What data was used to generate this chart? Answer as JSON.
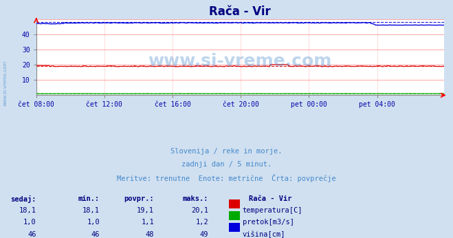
{
  "title": "Rača - Vir",
  "bg_color": "#d0e0f0",
  "plot_bg_color": "#ffffff",
  "grid_color_h": "#ff0000",
  "grid_color_v": "#ff9999",
  "xlabel_color": "#0000aa",
  "title_color": "#000080",
  "subtitle_lines": [
    "Slovenija / reke in morje.",
    "zadnji dan / 5 minut.",
    "Meritve: trenutne  Enote: metrične  Črta: povprečje"
  ],
  "subtitle_color": "#4488cc",
  "watermark": "www.si-vreme.com",
  "watermark_color": "#4488cc",
  "ylim": [
    0,
    50
  ],
  "yticks": [
    0,
    10,
    20,
    30,
    40,
    50
  ],
  "x_labels": [
    "čet 08:00",
    "čet 12:00",
    "čet 16:00",
    "čet 20:00",
    "pet 00:00",
    "pet 04:00"
  ],
  "n_points": 288,
  "temp_min": 18.1,
  "temp_max": 20.1,
  "temp_avg": 19.1,
  "temp_color": "#dd0000",
  "pretok_min": 1.0,
  "pretok_max": 1.2,
  "pretok_avg": 1.1,
  "pretok_color": "#00aa00",
  "visina_min": 46,
  "visina_max": 49,
  "visina_avg": 48,
  "visina_color": "#0000dd",
  "legend_title": "Rača - Vir",
  "table_headers": [
    "sedaj:",
    "min.:",
    "povpr.:",
    "maks.:"
  ],
  "table_rows": [
    [
      "18,1",
      "18,1",
      "19,1",
      "20,1",
      "temperatura[C]"
    ],
    [
      "1,0",
      "1,0",
      "1,1",
      "1,2",
      "pretok[m3/s]"
    ],
    [
      "46",
      "46",
      "48",
      "49",
      "višina[cm]"
    ]
  ],
  "table_colors": [
    "#dd0000",
    "#00aa00",
    "#0000dd"
  ],
  "table_text_color": "#000080",
  "header_color": "#000080"
}
